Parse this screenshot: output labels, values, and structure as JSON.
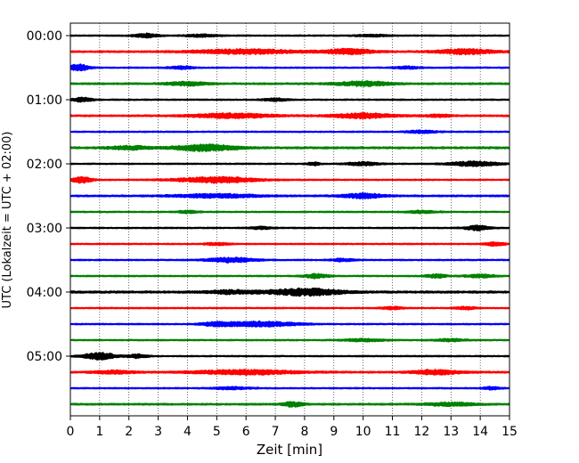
{
  "chart_data": {
    "type": "line",
    "title": "",
    "xlabel": "Zeit  [min]",
    "ylabel": "UTC (Lokalzeit = UTC + 02:00)",
    "xlim": [
      0,
      15
    ],
    "x_ticks": [
      "0",
      "1",
      "2",
      "3",
      "4",
      "5",
      "6",
      "7",
      "8",
      "9",
      "10",
      "11",
      "12",
      "13",
      "14",
      "15"
    ],
    "y_ticks": [
      "00:00",
      "01:00",
      "02:00",
      "03:00",
      "04:00",
      "05:00"
    ],
    "y_tick_rows": [
      0,
      4,
      8,
      12,
      16,
      20
    ],
    "grid": "vertical dotted at every minute",
    "series_colors": [
      "#000000",
      "#ff0000",
      "#0000ff",
      "#008000"
    ],
    "rows": [
      {
        "time": "00:00",
        "color": "#000000",
        "base": 1.0,
        "bursts": [
          {
            "x": 2.6,
            "w": 0.6,
            "a": 2.2
          },
          {
            "x": 4.5,
            "w": 0.8,
            "a": 1.3
          },
          {
            "x": 10.3,
            "w": 0.8,
            "a": 1.0
          }
        ]
      },
      {
        "time": "00:15",
        "color": "#ff0000",
        "base": 1.2,
        "bursts": [
          {
            "x": 6.0,
            "w": 2.6,
            "a": 2.4
          },
          {
            "x": 9.5,
            "w": 1.2,
            "a": 2.8
          },
          {
            "x": 13.5,
            "w": 1.5,
            "a": 2.6
          }
        ]
      },
      {
        "time": "00:30",
        "color": "#0000ff",
        "base": 1.0,
        "bursts": [
          {
            "x": 0.3,
            "w": 0.5,
            "a": 3.5
          },
          {
            "x": 3.8,
            "w": 0.6,
            "a": 1.6
          },
          {
            "x": 11.5,
            "w": 0.6,
            "a": 1.3
          }
        ]
      },
      {
        "time": "00:45",
        "color": "#008000",
        "base": 1.2,
        "bursts": [
          {
            "x": 4.0,
            "w": 1.0,
            "a": 1.8
          },
          {
            "x": 10.0,
            "w": 1.4,
            "a": 2.4
          }
        ]
      },
      {
        "time": "01:00",
        "color": "#000000",
        "base": 1.0,
        "bursts": [
          {
            "x": 0.4,
            "w": 0.5,
            "a": 2.2
          },
          {
            "x": 7.0,
            "w": 0.6,
            "a": 1.5
          }
        ]
      },
      {
        "time": "01:15",
        "color": "#ff0000",
        "base": 1.2,
        "bursts": [
          {
            "x": 5.5,
            "w": 2.0,
            "a": 2.4
          },
          {
            "x": 10.0,
            "w": 1.5,
            "a": 2.6
          },
          {
            "x": 12.6,
            "w": 0.6,
            "a": 1.3
          }
        ]
      },
      {
        "time": "01:30",
        "color": "#0000ff",
        "base": 1.0,
        "bursts": [
          {
            "x": 12.0,
            "w": 0.8,
            "a": 1.3
          }
        ]
      },
      {
        "time": "01:45",
        "color": "#008000",
        "base": 1.3,
        "bursts": [
          {
            "x": 4.6,
            "w": 1.6,
            "a": 3.2
          },
          {
            "x": 2.0,
            "w": 1.0,
            "a": 1.8
          }
        ]
      },
      {
        "time": "02:00",
        "color": "#000000",
        "base": 1.0,
        "bursts": [
          {
            "x": 8.3,
            "w": 0.3,
            "a": 1.8
          },
          {
            "x": 10.0,
            "w": 0.8,
            "a": 1.8
          },
          {
            "x": 13.8,
            "w": 1.2,
            "a": 2.6
          }
        ]
      },
      {
        "time": "02:15",
        "color": "#ff0000",
        "base": 1.0,
        "bursts": [
          {
            "x": 0.4,
            "w": 0.5,
            "a": 3.2
          },
          {
            "x": 5.0,
            "w": 2.0,
            "a": 3.2
          }
        ]
      },
      {
        "time": "02:30",
        "color": "#0000ff",
        "base": 1.2,
        "bursts": [
          {
            "x": 5.0,
            "w": 2.0,
            "a": 2.0
          },
          {
            "x": 10.0,
            "w": 1.0,
            "a": 2.6
          }
        ]
      },
      {
        "time": "02:45",
        "color": "#008000",
        "base": 1.0,
        "bursts": [
          {
            "x": 4.0,
            "w": 0.5,
            "a": 1.4
          },
          {
            "x": 12.0,
            "w": 0.8,
            "a": 1.3
          }
        ]
      },
      {
        "time": "03:00",
        "color": "#000000",
        "base": 1.0,
        "bursts": [
          {
            "x": 13.9,
            "w": 0.6,
            "a": 2.6
          },
          {
            "x": 6.5,
            "w": 0.6,
            "a": 1.2
          }
        ]
      },
      {
        "time": "03:15",
        "color": "#ff0000",
        "base": 1.0,
        "bursts": [
          {
            "x": 5.0,
            "w": 0.6,
            "a": 1.3
          },
          {
            "x": 14.5,
            "w": 0.5,
            "a": 1.8
          }
        ]
      },
      {
        "time": "03:30",
        "color": "#0000ff",
        "base": 1.0,
        "bursts": [
          {
            "x": 5.5,
            "w": 1.2,
            "a": 2.6
          },
          {
            "x": 9.3,
            "w": 0.6,
            "a": 1.4
          }
        ]
      },
      {
        "time": "03:45",
        "color": "#008000",
        "base": 1.0,
        "bursts": [
          {
            "x": 8.4,
            "w": 0.6,
            "a": 2.2
          },
          {
            "x": 12.5,
            "w": 0.5,
            "a": 2.0
          },
          {
            "x": 14.0,
            "w": 0.8,
            "a": 1.6
          }
        ]
      },
      {
        "time": "04:00",
        "color": "#000000",
        "base": 1.4,
        "bursts": [
          {
            "x": 8.0,
            "w": 1.8,
            "a": 3.6
          },
          {
            "x": 5.5,
            "w": 1.2,
            "a": 1.8
          }
        ]
      },
      {
        "time": "04:15",
        "color": "#ff0000",
        "base": 1.0,
        "bursts": [
          {
            "x": 11.0,
            "w": 0.5,
            "a": 1.4
          },
          {
            "x": 13.5,
            "w": 0.5,
            "a": 1.4
          }
        ]
      },
      {
        "time": "04:30",
        "color": "#0000ff",
        "base": 1.0,
        "bursts": [
          {
            "x": 6.5,
            "w": 1.8,
            "a": 2.8
          },
          {
            "x": 5.0,
            "w": 0.8,
            "a": 1.8
          }
        ]
      },
      {
        "time": "04:45",
        "color": "#008000",
        "base": 1.0,
        "bursts": [
          {
            "x": 10.0,
            "w": 1.0,
            "a": 1.4
          },
          {
            "x": 13.0,
            "w": 0.8,
            "a": 1.3
          }
        ]
      },
      {
        "time": "05:00",
        "color": "#000000",
        "base": 1.0,
        "bursts": [
          {
            "x": 1.0,
            "w": 0.8,
            "a": 3.8
          },
          {
            "x": 2.3,
            "w": 0.5,
            "a": 2.0
          }
        ]
      },
      {
        "time": "05:15",
        "color": "#ff0000",
        "base": 1.2,
        "bursts": [
          {
            "x": 6.0,
            "w": 2.5,
            "a": 2.4
          },
          {
            "x": 12.5,
            "w": 1.2,
            "a": 2.4
          },
          {
            "x": 1.5,
            "w": 1.0,
            "a": 1.6
          }
        ]
      },
      {
        "time": "05:30",
        "color": "#0000ff",
        "base": 1.0,
        "bursts": [
          {
            "x": 5.5,
            "w": 1.0,
            "a": 1.2
          },
          {
            "x": 14.4,
            "w": 0.4,
            "a": 1.6
          }
        ]
      },
      {
        "time": "05:45",
        "color": "#008000",
        "base": 1.2,
        "bursts": [
          {
            "x": 7.6,
            "w": 0.5,
            "a": 2.6
          },
          {
            "x": 13.0,
            "w": 1.2,
            "a": 1.8
          }
        ]
      }
    ]
  }
}
